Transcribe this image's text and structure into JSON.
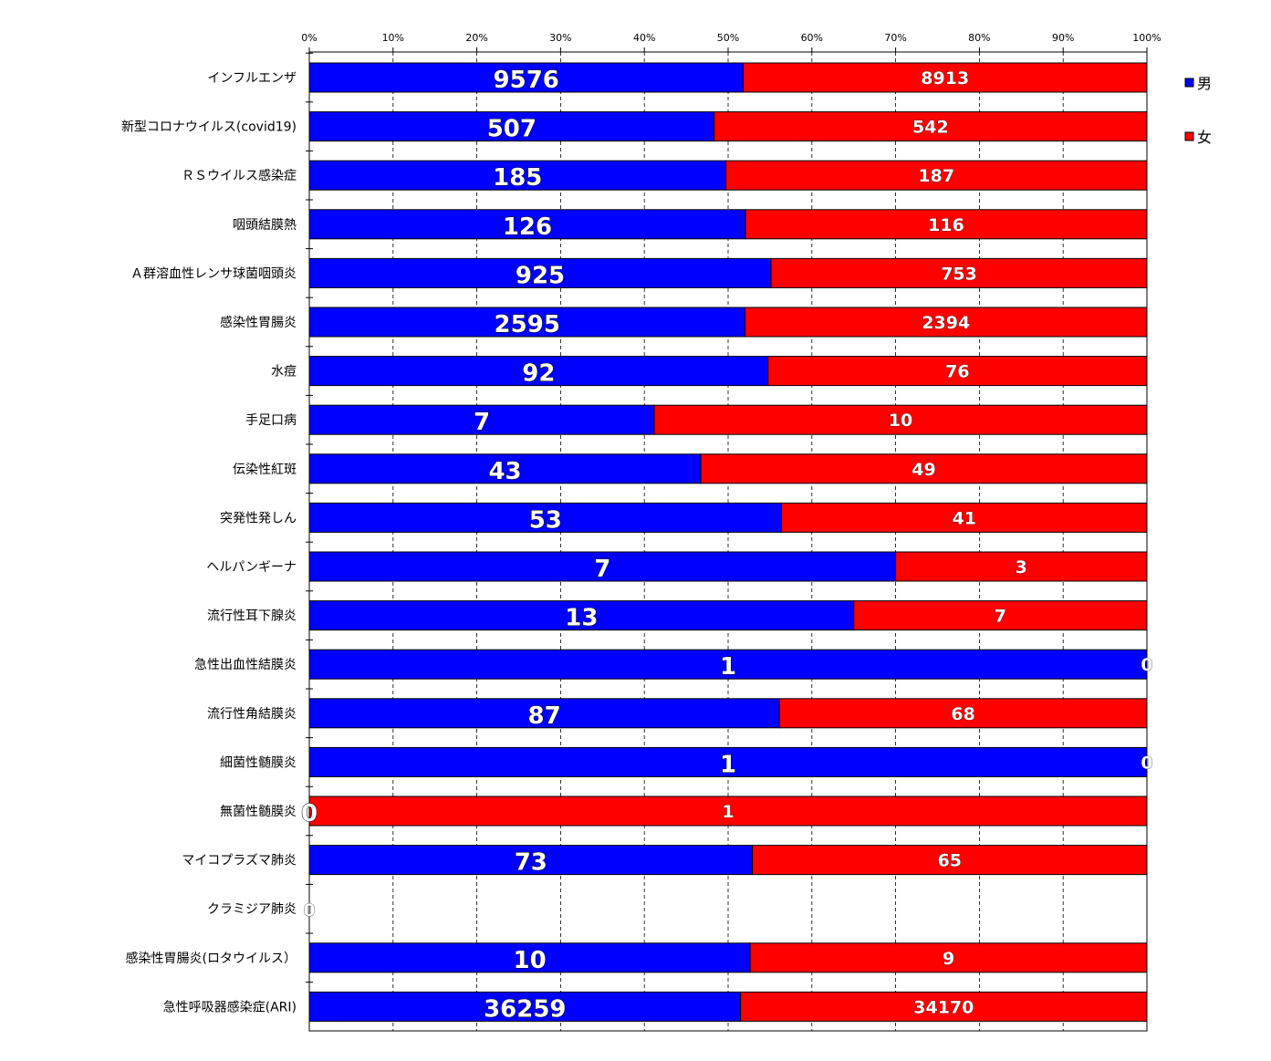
{
  "chart_data": {
    "type": "bar",
    "orientation": "horizontal",
    "stacking": "percent",
    "categories": [
      "インフルエンザ",
      "新型コロナウイルス(covid19)",
      "ＲＳウイルス感染症",
      "咽頭結膜熱",
      "Ａ群溶血性レンサ球菌咽頭炎",
      "感染性胃腸炎",
      "水痘",
      "手足口病",
      "伝染性紅斑",
      "突発性発しん",
      "ヘルパンギーナ",
      "流行性耳下腺炎",
      "急性出血性結膜炎",
      "流行性角結膜炎",
      "細菌性髄膜炎",
      "無菌性髄膜炎",
      "マイコプラズマ肺炎",
      "クラミジア肺炎",
      "感染性胃腸炎(ロタウイルス）",
      "急性呼吸器感染症(ARI)"
    ],
    "series": [
      {
        "name": "男",
        "color": "#0000ff",
        "values": [
          9576,
          507,
          185,
          126,
          925,
          2595,
          92,
          7,
          43,
          53,
          7,
          13,
          1,
          87,
          1,
          0,
          73,
          0,
          10,
          36259
        ]
      },
      {
        "name": "女",
        "color": "#ff0000",
        "values": [
          8913,
          542,
          187,
          116,
          753,
          2394,
          76,
          10,
          49,
          41,
          3,
          7,
          0,
          68,
          0,
          1,
          65,
          0,
          9,
          34170
        ]
      }
    ],
    "x_ticks": [
      "0%",
      "10%",
      "20%",
      "30%",
      "40%",
      "50%",
      "60%",
      "70%",
      "80%",
      "90%",
      "100%"
    ],
    "xlim": [
      0,
      100
    ],
    "x_axis_position": "top",
    "grid": "vertical dashed",
    "legend": "right"
  }
}
